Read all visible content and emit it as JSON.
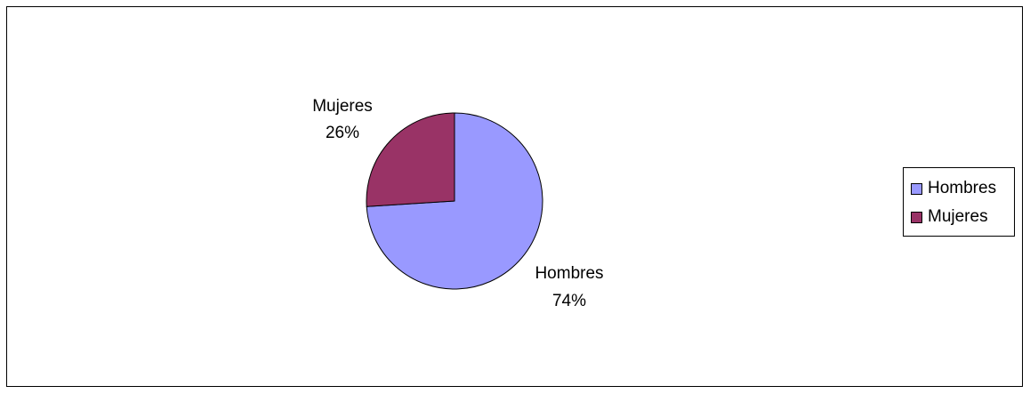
{
  "chart_data": {
    "type": "pie",
    "categories": [
      "Hombres",
      "Mujeres"
    ],
    "values": [
      74,
      26
    ],
    "percent_labels": [
      "74%",
      "26%"
    ],
    "colors": [
      "#9999FF",
      "#993366"
    ],
    "legend_placement": "right",
    "title": "",
    "xlabel": "",
    "ylabel": ""
  },
  "legend": {
    "items": [
      {
        "label": "Hombres",
        "color": "#9999FF"
      },
      {
        "label": "Mujeres",
        "color": "#993366"
      }
    ]
  },
  "labels": {
    "hombres_name": "Hombres",
    "hombres_pct": "74%",
    "mujeres_name": "Mujeres",
    "mujeres_pct": "26%"
  }
}
